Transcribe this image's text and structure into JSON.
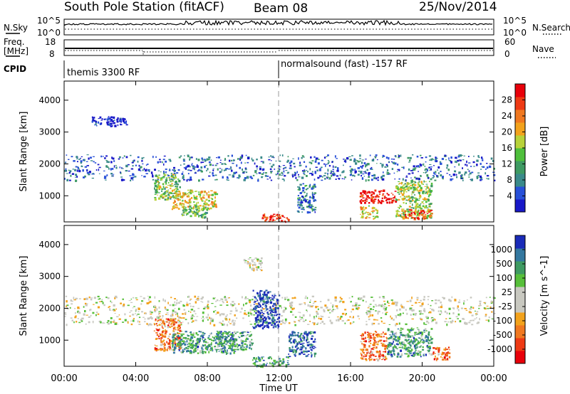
{
  "header": {
    "station": "South Pole Station (fitACF)",
    "beam": "Beam 08",
    "date": "25/Nov/2014"
  },
  "aux_labels": {
    "nsky": "N.Sky",
    "nsearch": "N.Search",
    "freq_line1": "Freq.",
    "freq_line2": "[MHz]",
    "nave": "Nave",
    "cpid": "CPID",
    "noise_top": "10^5",
    "noise_bottom": "10^0",
    "freq_top": "18",
    "freq_bottom": "8",
    "nave_top": "60",
    "nave_bottom": "0"
  },
  "cpid_segments": [
    {
      "label": "themis 3300 RF",
      "start_hour": 0
    },
    {
      "label": "normalsound (fast) -157 RF",
      "start_hour": 12
    }
  ],
  "colors": {
    "scale_power": [
      "#1818c8",
      "#2850d8",
      "#3a8a8a",
      "#3e9a62",
      "#4fbf3c",
      "#b8d23a",
      "#f2a21c",
      "#f07820",
      "#ee3a14",
      "#e8000a"
    ],
    "scale_velocity": [
      "#e8000a",
      "#ee3a14",
      "#f07820",
      "#f2a21c",
      "#c8c8c0",
      "#c8c8c0",
      "#57bf3a",
      "#3e9a62",
      "#3478a0",
      "#1a2bb8"
    ]
  },
  "chart_data": [
    {
      "type": "heatmap",
      "name_panel": "power",
      "ylabel": "Slant Range [km]",
      "yticks": [
        "1000",
        "2000",
        "3000",
        "4000"
      ],
      "ylim": [
        180,
        4600
      ],
      "xlim_hours": [
        0,
        24
      ],
      "colorbar_label": "Power [dB]",
      "colorbar_ticks": [
        "4",
        "8",
        "12",
        "16",
        "20",
        "24",
        "28"
      ],
      "colorbar_range": [
        0,
        32
      ],
      "regions": [
        {
          "t": [
            0.0,
            24.0
          ],
          "r": [
            1500,
            2300
          ],
          "level": 0.18
        },
        {
          "t": [
            5.0,
            6.5
          ],
          "r": [
            900,
            1700
          ],
          "level": 0.45
        },
        {
          "t": [
            6.0,
            8.5
          ],
          "r": [
            600,
            1200
          ],
          "level": 0.6
        },
        {
          "t": [
            6.5,
            8.0
          ],
          "r": [
            300,
            700
          ],
          "level": 0.4
        },
        {
          "t": [
            11.0,
            12.5
          ],
          "r": [
            200,
            450
          ],
          "level": 0.9
        },
        {
          "t": [
            13.0,
            14.0
          ],
          "r": [
            500,
            1400
          ],
          "level": 0.25
        },
        {
          "t": [
            16.5,
            18.5
          ],
          "r": [
            800,
            1200
          ],
          "level": 0.95
        },
        {
          "t": [
            16.5,
            17.5
          ],
          "r": [
            300,
            700
          ],
          "level": 0.6
        },
        {
          "t": [
            18.5,
            20.5
          ],
          "r": [
            300,
            1500
          ],
          "level": 0.5
        },
        {
          "t": [
            19.0,
            20.5
          ],
          "r": [
            300,
            600
          ],
          "level": 0.85
        },
        {
          "t": [
            1.5,
            3.5
          ],
          "r": [
            3200,
            3500
          ],
          "level": 0.05
        }
      ]
    },
    {
      "type": "heatmap",
      "name_panel": "velocity",
      "ylabel": "Slant Range [km]",
      "yticks": [
        "1000",
        "2000",
        "3000",
        "4000"
      ],
      "ylim": [
        180,
        4600
      ],
      "xlim_hours": [
        0,
        24
      ],
      "xticks": [
        "00:00",
        "04:00",
        "08:00",
        "12:00",
        "16:00",
        "20:00",
        "00:00"
      ],
      "xlabel": "Time UT",
      "colorbar_label": "Velocity [m s^-1]",
      "colorbar_ticks": [
        "-1000",
        "-500",
        "-100",
        "-25",
        "25",
        "100",
        "500",
        "1000"
      ],
      "regions": [
        {
          "t": [
            0.0,
            24.0
          ],
          "r": [
            1500,
            2400
          ],
          "level": 0.5
        },
        {
          "t": [
            5.0,
            6.5
          ],
          "r": [
            700,
            1700
          ],
          "level": 0.25
        },
        {
          "t": [
            6.0,
            9.5
          ],
          "r": [
            600,
            1300
          ],
          "level": 0.75
        },
        {
          "t": [
            8.5,
            10.5
          ],
          "r": [
            700,
            1300
          ],
          "level": 0.75
        },
        {
          "t": [
            10.5,
            12.0
          ],
          "r": [
            1400,
            2600
          ],
          "level": 0.95
        },
        {
          "t": [
            10.5,
            12.5
          ],
          "r": [
            200,
            500
          ],
          "level": 0.75
        },
        {
          "t": [
            12.5,
            14.0
          ],
          "r": [
            500,
            1300
          ],
          "level": 0.9
        },
        {
          "t": [
            16.5,
            18.0
          ],
          "r": [
            400,
            1300
          ],
          "level": 0.25
        },
        {
          "t": [
            18.0,
            20.5
          ],
          "r": [
            500,
            1400
          ],
          "level": 0.75
        },
        {
          "t": [
            20.5,
            21.5
          ],
          "r": [
            400,
            800
          ],
          "level": 0.25
        },
        {
          "t": [
            10.0,
            11.0
          ],
          "r": [
            3200,
            3600
          ],
          "level": 0.5
        }
      ]
    }
  ]
}
